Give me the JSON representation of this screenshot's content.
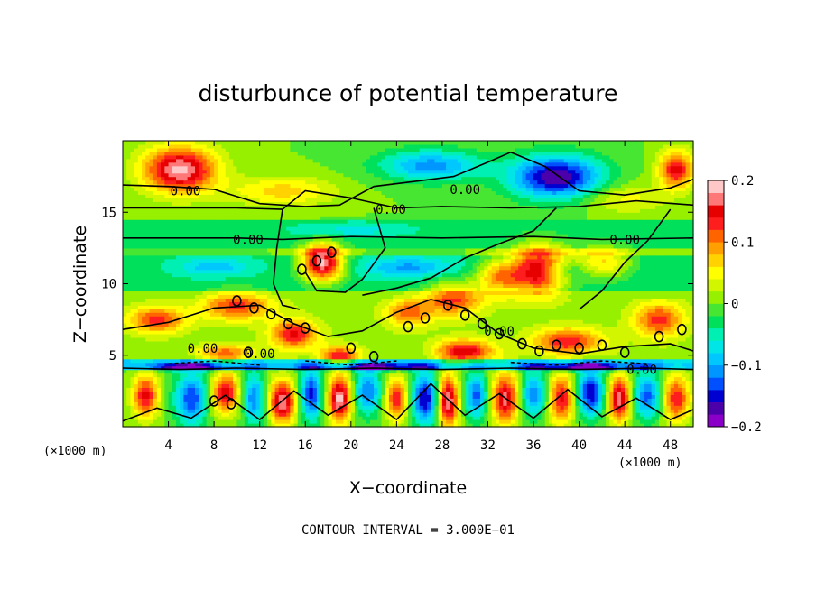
{
  "chart_data": {
    "type": "heatmap",
    "title": "disturbunce of potential temperature",
    "xlabel": "X−coordinate",
    "ylabel": "Z−coordinate",
    "x_unit_label": "(×1000 m)",
    "y_unit_label": "(×1000 m)",
    "xlim": [
      0,
      50
    ],
    "ylim": [
      0,
      20
    ],
    "x_ticks": [
      4,
      8,
      12,
      16,
      20,
      24,
      28,
      32,
      36,
      40,
      44,
      48
    ],
    "y_ticks": [
      5,
      10,
      15
    ],
    "colorbar": {
      "min": -0.2,
      "max": 0.2,
      "tick_values": [
        0.2,
        0.1,
        0,
        -0.1,
        -0.2
      ],
      "tick_labels": [
        "0.2",
        "0.1",
        "0",
        "−0.1",
        "−0.2"
      ],
      "colors": [
        "#8b00c8",
        "#4b00aa",
        "#0000d0",
        "#0050ff",
        "#0096ff",
        "#00c8ff",
        "#00e6e6",
        "#00f0b4",
        "#00e05a",
        "#46e632",
        "#96f000",
        "#d2f500",
        "#ffff00",
        "#ffd200",
        "#ffa000",
        "#ff6400",
        "#ff1e1e",
        "#e60000",
        "#ff7878",
        "#ffc8c8"
      ]
    },
    "contour_interval_label": "CONTOUR INTERVAL = 3.000E−01",
    "contour_labels": [
      "0.00",
      "0.00",
      "0.00",
      "0.00",
      "0.00",
      "0.00",
      "0.00",
      "0.00",
      "0.00"
    ],
    "blobs": [
      {
        "x": 5,
        "z": 18,
        "v": 0.19,
        "rx": 3.2,
        "rz": 1.6
      },
      {
        "x": 48.5,
        "z": 18,
        "v": 0.15,
        "rx": 1.5,
        "rz": 1.3
      },
      {
        "x": 38,
        "z": 17.5,
        "v": -0.18,
        "rx": 4.0,
        "rz": 1.5
      },
      {
        "x": 27,
        "z": 18.3,
        "v": -0.11,
        "rx": 4.5,
        "rz": 1.1
      },
      {
        "x": 14,
        "z": 16.5,
        "v": 0.07,
        "rx": 4.5,
        "rz": 1.0
      },
      {
        "x": 44,
        "z": 16.0,
        "v": 0.05,
        "rx": 3.5,
        "rz": 1.0
      },
      {
        "x": 25,
        "z": 11.2,
        "v": -0.07,
        "rx": 4.0,
        "rz": 0.7
      },
      {
        "x": 8,
        "z": 11.2,
        "v": -0.06,
        "rx": 3.0,
        "rz": 0.6
      },
      {
        "x": 38,
        "z": 11.0,
        "v": -0.06,
        "rx": 3.0,
        "rz": 0.7
      },
      {
        "x": 17.5,
        "z": 11.5,
        "v": 0.22,
        "rx": 1.8,
        "rz": 1.3
      },
      {
        "x": 36.5,
        "z": 11.0,
        "v": 0.22,
        "rx": 2.4,
        "rz": 1.6
      },
      {
        "x": 33,
        "z": 10.5,
        "v": 0.12,
        "rx": 2.0,
        "rz": 1.2
      },
      {
        "x": 42,
        "z": 11.5,
        "v": 0.1,
        "rx": 2.5,
        "rz": 1.1
      },
      {
        "x": 29,
        "z": 9.0,
        "v": 0.12,
        "rx": 2.5,
        "rz": 1.2
      },
      {
        "x": 25,
        "z": 8.0,
        "v": 0.1,
        "rx": 2.0,
        "rz": 1.0
      },
      {
        "x": 10,
        "z": 8.5,
        "v": 0.12,
        "rx": 3.0,
        "rz": 1.0
      },
      {
        "x": 3,
        "z": 7.5,
        "v": 0.12,
        "rx": 2.5,
        "rz": 0.9
      },
      {
        "x": 15,
        "z": 6.5,
        "v": 0.14,
        "rx": 2.0,
        "rz": 1.0
      },
      {
        "x": 47,
        "z": 7.5,
        "v": 0.12,
        "rx": 2.2,
        "rz": 1.2
      },
      {
        "x": 39,
        "z": 6.0,
        "v": 0.13,
        "rx": 3.0,
        "rz": 0.9
      },
      {
        "x": 30,
        "z": 5.3,
        "v": 0.15,
        "rx": 2.5,
        "rz": 0.8
      },
      {
        "x": 19,
        "z": 5.0,
        "v": 0.12,
        "rx": 2.0,
        "rz": 0.7
      },
      {
        "x": 9,
        "z": 5.2,
        "v": 0.1,
        "rx": 2.5,
        "rz": 0.6
      },
      {
        "x": 20,
        "z": 13.8,
        "v": -0.04,
        "rx": 5.0,
        "rz": 0.5
      },
      {
        "x": 2,
        "z": 2.2,
        "v": 0.15,
        "rx": 1.1,
        "rz": 1.5
      },
      {
        "x": 6,
        "z": 2.0,
        "v": -0.14,
        "rx": 1.4,
        "rz": 1.8
      },
      {
        "x": 9,
        "z": 2.4,
        "v": 0.16,
        "rx": 1.2,
        "rz": 1.4
      },
      {
        "x": 11.5,
        "z": 2.0,
        "v": -0.12,
        "rx": 1.0,
        "rz": 1.8
      },
      {
        "x": 14,
        "z": 1.8,
        "v": 0.18,
        "rx": 1.2,
        "rz": 1.5
      },
      {
        "x": 16.5,
        "z": 2.3,
        "v": -0.15,
        "rx": 1.0,
        "rz": 1.8
      },
      {
        "x": 19,
        "z": 2.0,
        "v": 0.19,
        "rx": 1.0,
        "rz": 1.7
      },
      {
        "x": 21.5,
        "z": 2.5,
        "v": -0.12,
        "rx": 1.2,
        "rz": 1.6
      },
      {
        "x": 24,
        "z": 2.0,
        "v": 0.14,
        "rx": 1.0,
        "rz": 1.5
      },
      {
        "x": 26.5,
        "z": 2.0,
        "v": -0.16,
        "rx": 1.2,
        "rz": 1.8
      },
      {
        "x": 28.5,
        "z": 1.8,
        "v": 0.19,
        "rx": 0.9,
        "rz": 1.8
      },
      {
        "x": 31,
        "z": 2.2,
        "v": -0.13,
        "rx": 1.0,
        "rz": 1.6
      },
      {
        "x": 33.5,
        "z": 2.0,
        "v": 0.17,
        "rx": 1.2,
        "rz": 1.7
      },
      {
        "x": 36,
        "z": 2.3,
        "v": -0.12,
        "rx": 1.1,
        "rz": 1.5
      },
      {
        "x": 38.5,
        "z": 2.0,
        "v": 0.15,
        "rx": 1.1,
        "rz": 1.7
      },
      {
        "x": 41,
        "z": 2.4,
        "v": -0.16,
        "rx": 1.3,
        "rz": 1.6
      },
      {
        "x": 43.5,
        "z": 2.0,
        "v": 0.18,
        "rx": 1.0,
        "rz": 1.6
      },
      {
        "x": 46,
        "z": 2.2,
        "v": -0.13,
        "rx": 1.2,
        "rz": 1.6
      },
      {
        "x": 48.5,
        "z": 2.0,
        "v": 0.14,
        "rx": 1.2,
        "rz": 1.6
      },
      {
        "x": 6,
        "z": 4.2,
        "v": -0.1,
        "rx": 4.0,
        "rz": 0.3
      },
      {
        "x": 22,
        "z": 4.2,
        "v": -0.1,
        "rx": 5.0,
        "rz": 0.3
      },
      {
        "x": 40,
        "z": 4.2,
        "v": -0.1,
        "rx": 5.0,
        "rz": 0.3
      }
    ]
  }
}
